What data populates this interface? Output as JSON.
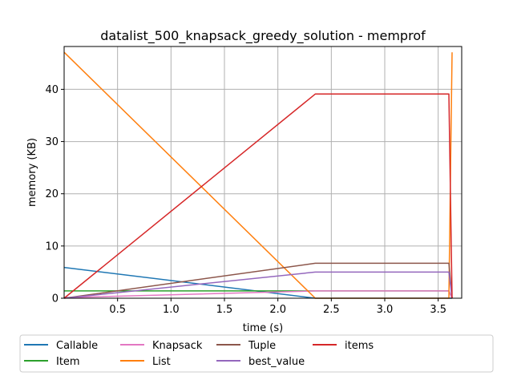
{
  "chart_data": {
    "type": "line",
    "title": "datalist_500_knapsack_greedy_solution - memprof",
    "xlabel": "time (s)",
    "ylabel": "memory (KB)",
    "xlim": [
      0.0,
      3.72
    ],
    "ylim": [
      0,
      48.2
    ],
    "x_ticks": [
      0.5,
      1.0,
      1.5,
      2.0,
      2.5,
      3.0,
      3.5
    ],
    "x_tick_labels": [
      "0.5",
      "1.0",
      "1.5",
      "2.0",
      "2.5",
      "3.0",
      "3.5"
    ],
    "y_ticks": [
      0,
      10,
      20,
      30,
      40
    ],
    "y_tick_labels": [
      "0",
      "10",
      "20",
      "30",
      "40"
    ],
    "grid": true,
    "legend_position": "bottom-outside",
    "series": [
      {
        "name": "Callable",
        "color": "#1f77b4",
        "x": [
          0.0,
          2.35,
          3.6,
          3.63
        ],
        "y": [
          5.9,
          0.0,
          0.0,
          0.0
        ]
      },
      {
        "name": "Item",
        "color": "#2ca02c",
        "x": [
          0.0,
          3.6,
          3.63
        ],
        "y": [
          1.4,
          1.4,
          0.0
        ]
      },
      {
        "name": "Knapsack",
        "color": "#e377c2",
        "x": [
          0.0,
          2.35,
          3.6,
          3.63
        ],
        "y": [
          0.1,
          1.4,
          1.4,
          0.0
        ]
      },
      {
        "name": "List",
        "color": "#ff7f0e",
        "x": [
          0.0,
          2.35,
          3.6,
          3.63
        ],
        "y": [
          47.1,
          0.0,
          0.0,
          47.1
        ]
      },
      {
        "name": "Tuple",
        "color": "#8c564b",
        "x": [
          0.0,
          2.35,
          3.6,
          3.63
        ],
        "y": [
          0.0,
          6.7,
          6.7,
          0.0
        ]
      },
      {
        "name": "best_value",
        "color": "#9467bd",
        "x": [
          0.0,
          2.35,
          3.6,
          3.63
        ],
        "y": [
          0.0,
          5.0,
          5.0,
          0.0
        ]
      },
      {
        "name": "items",
        "color": "#d62728",
        "x": [
          0.0,
          2.35,
          3.6,
          3.63
        ],
        "y": [
          0.0,
          39.1,
          39.1,
          0.0
        ]
      }
    ]
  }
}
